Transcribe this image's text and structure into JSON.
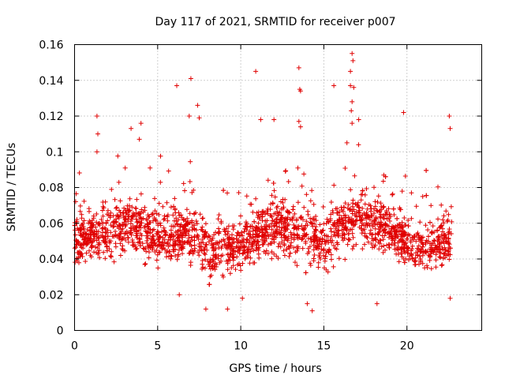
{
  "chart_data": {
    "type": "scatter",
    "title": "Day 117 of 2021, SRMTID for receiver p007",
    "xlabel": "GPS time / hours",
    "ylabel": "SRMTID / TECUs",
    "xlim": [
      0,
      24.5
    ],
    "ylim": [
      0,
      0.16
    ],
    "xticks": [
      0,
      5,
      10,
      15,
      20
    ],
    "xtick_labels": [
      "0",
      "5",
      "10",
      "15",
      "20"
    ],
    "yticks": [
      0,
      0.02,
      0.04,
      0.06,
      0.08,
      0.1,
      0.12,
      0.14,
      0.16
    ],
    "ytick_labels": [
      "0",
      "0.02",
      "0.04",
      "0.06",
      "0.08",
      "0.1",
      "0.12",
      "0.14",
      "0.16"
    ],
    "grid": true,
    "marker": "+",
    "color": "#e00000",
    "series": [
      {
        "name": "SRMTID",
        "x_range": [
          0,
          22.7
        ],
        "n_points": 2200,
        "typical_range": [
          0.025,
          0.085
        ],
        "envelope": [
          {
            "x": 0,
            "center": 0.052,
            "spread": 0.018
          },
          {
            "x": 2,
            "center": 0.055,
            "spread": 0.018
          },
          {
            "x": 3.5,
            "center": 0.06,
            "spread": 0.02
          },
          {
            "x": 5,
            "center": 0.052,
            "spread": 0.018
          },
          {
            "x": 7,
            "center": 0.055,
            "spread": 0.02
          },
          {
            "x": 8,
            "center": 0.045,
            "spread": 0.018
          },
          {
            "x": 10,
            "center": 0.048,
            "spread": 0.018
          },
          {
            "x": 12,
            "center": 0.058,
            "spread": 0.02
          },
          {
            "x": 14,
            "center": 0.055,
            "spread": 0.02
          },
          {
            "x": 15,
            "center": 0.048,
            "spread": 0.018
          },
          {
            "x": 17,
            "center": 0.065,
            "spread": 0.02
          },
          {
            "x": 19,
            "center": 0.055,
            "spread": 0.018
          },
          {
            "x": 21,
            "center": 0.045,
            "spread": 0.018
          },
          {
            "x": 22.7,
            "center": 0.05,
            "spread": 0.018
          }
        ],
        "outliers": [
          {
            "x": 1.35,
            "y": 0.12
          },
          {
            "x": 1.4,
            "y": 0.11
          },
          {
            "x": 1.35,
            "y": 0.1
          },
          {
            "x": 3.4,
            "y": 0.113
          },
          {
            "x": 3.9,
            "y": 0.107
          },
          {
            "x": 4.0,
            "y": 0.116
          },
          {
            "x": 6.15,
            "y": 0.137
          },
          {
            "x": 7.0,
            "y": 0.141
          },
          {
            "x": 7.4,
            "y": 0.126
          },
          {
            "x": 7.5,
            "y": 0.119
          },
          {
            "x": 6.9,
            "y": 0.12
          },
          {
            "x": 10.9,
            "y": 0.145
          },
          {
            "x": 11.2,
            "y": 0.118
          },
          {
            "x": 12.0,
            "y": 0.118
          },
          {
            "x": 13.5,
            "y": 0.147
          },
          {
            "x": 13.55,
            "y": 0.135
          },
          {
            "x": 13.6,
            "y": 0.134
          },
          {
            "x": 13.5,
            "y": 0.117
          },
          {
            "x": 13.6,
            "y": 0.114
          },
          {
            "x": 15.6,
            "y": 0.137
          },
          {
            "x": 16.7,
            "y": 0.155
          },
          {
            "x": 16.75,
            "y": 0.151
          },
          {
            "x": 16.6,
            "y": 0.145
          },
          {
            "x": 16.6,
            "y": 0.137
          },
          {
            "x": 16.8,
            "y": 0.136
          },
          {
            "x": 16.7,
            "y": 0.128
          },
          {
            "x": 16.65,
            "y": 0.123
          },
          {
            "x": 16.7,
            "y": 0.116
          },
          {
            "x": 17.1,
            "y": 0.118
          },
          {
            "x": 19.8,
            "y": 0.122
          },
          {
            "x": 22.55,
            "y": 0.12
          },
          {
            "x": 22.6,
            "y": 0.113
          },
          {
            "x": 7.9,
            "y": 0.012
          },
          {
            "x": 9.2,
            "y": 0.012
          },
          {
            "x": 14.3,
            "y": 0.011
          },
          {
            "x": 18.2,
            "y": 0.015
          },
          {
            "x": 10.1,
            "y": 0.018
          },
          {
            "x": 22.6,
            "y": 0.018
          },
          {
            "x": 14.0,
            "y": 0.015
          },
          {
            "x": 6.3,
            "y": 0.02
          }
        ]
      }
    ]
  }
}
